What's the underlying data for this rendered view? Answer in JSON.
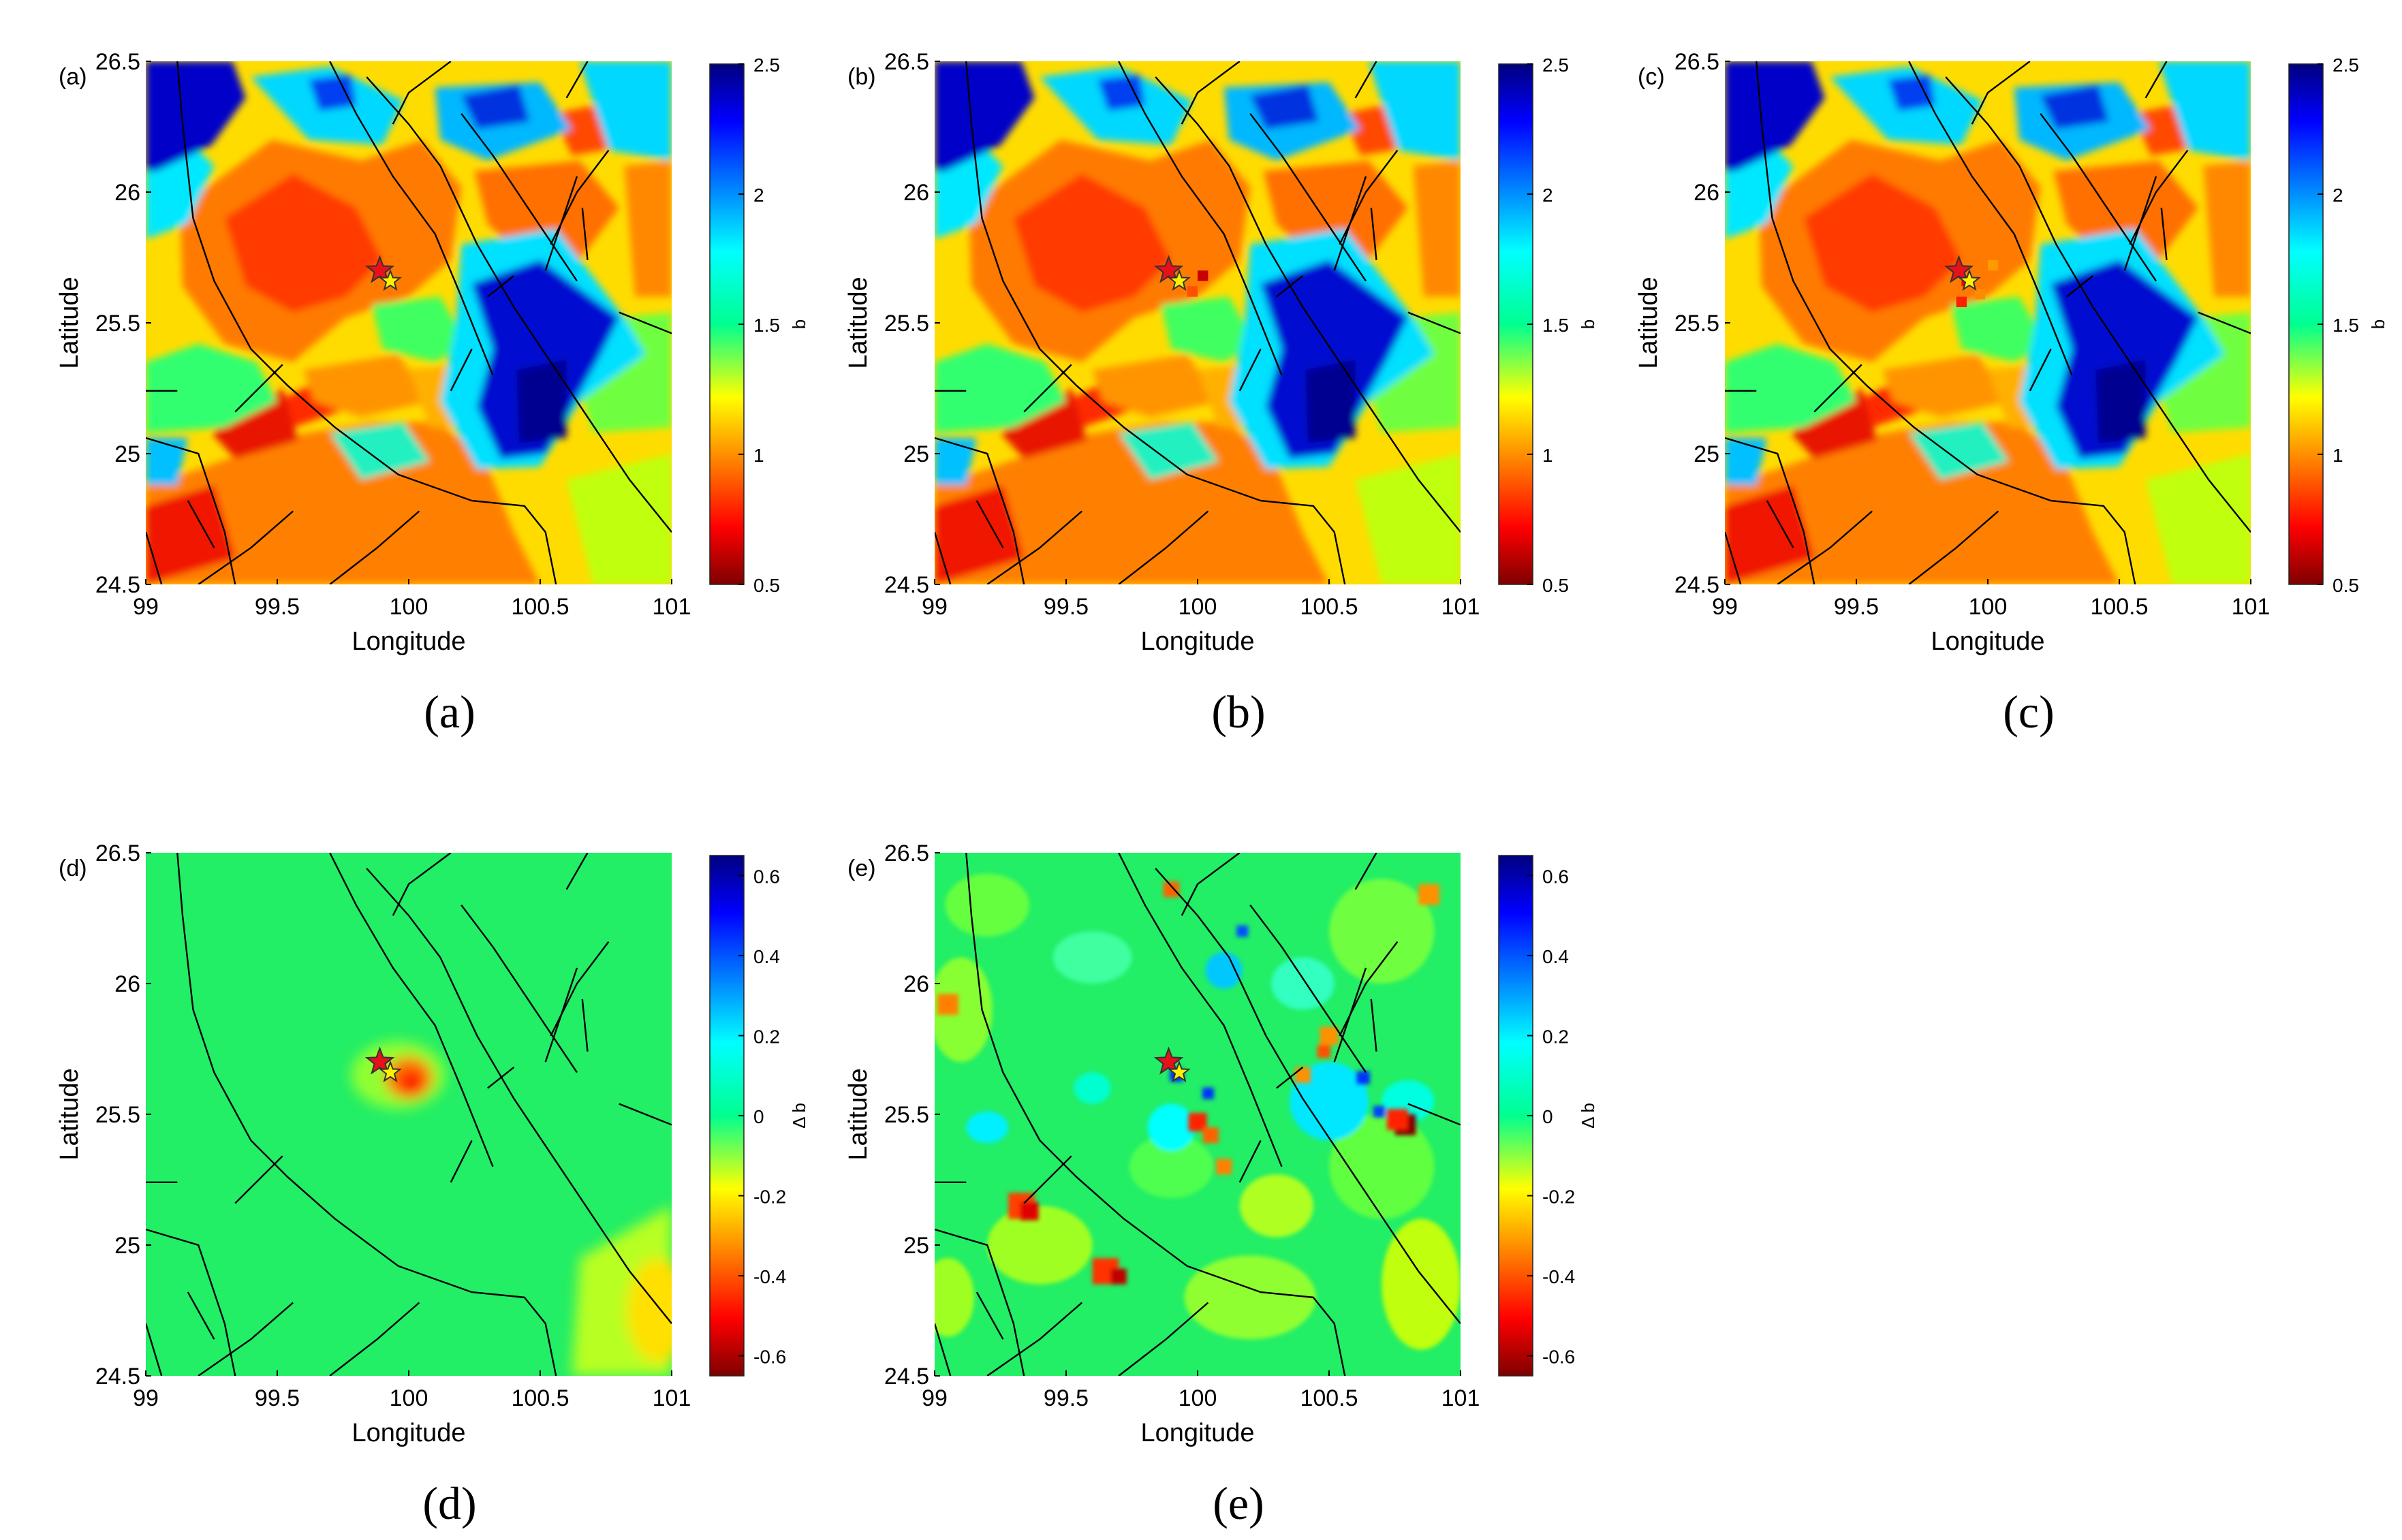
{
  "colorbar_b": {
    "label": "b",
    "min": 0.5,
    "max": 2.5,
    "ticks": [
      0.5,
      1,
      1.5,
      2,
      2.5
    ],
    "tick_labels": [
      "0.5",
      "1",
      "1.5",
      "2",
      "2.5"
    ]
  },
  "colorbar_db": {
    "label": "Δ b",
    "min": -0.65,
    "max": 0.65,
    "ticks": [
      -0.6,
      -0.4,
      -0.2,
      0,
      0.2,
      0.4,
      0.6
    ],
    "tick_labels": [
      "-0.6",
      "-0.4",
      "-0.2",
      "0",
      "0.2",
      "0.4",
      "0.6"
    ]
  },
  "axes": {
    "xlabel": "Longitude",
    "ylabel": "Latitude",
    "xlim": [
      99,
      101
    ],
    "ylim": [
      24.5,
      26.5
    ],
    "xticks": [
      99,
      99.5,
      100,
      100.5,
      101
    ],
    "xtick_labels": [
      "99",
      "99.5",
      "100",
      "100.5",
      "101"
    ],
    "yticks": [
      24.5,
      25,
      25.5,
      26,
      26.5
    ],
    "ytick_labels": [
      "24.5",
      "25",
      "25.5",
      "26",
      "26.5"
    ]
  },
  "panels": [
    {
      "id": "a",
      "corner_label": "(a)",
      "caption": "(a)",
      "colorbar": "b"
    },
    {
      "id": "b",
      "corner_label": "(b)",
      "caption": "(b)",
      "colorbar": "b"
    },
    {
      "id": "c",
      "corner_label": "(c)",
      "caption": "(c)",
      "colorbar": "b"
    },
    {
      "id": "d",
      "corner_label": "(d)",
      "caption": "(d)",
      "colorbar": "db"
    },
    {
      "id": "e",
      "corner_label": "(e)",
      "caption": "(e)",
      "colorbar": "db"
    }
  ],
  "chart_data": [
    {
      "type": "heatmap",
      "panel": "a",
      "x": "Longitude",
      "y": "Latitude",
      "xlim": [
        99,
        101
      ],
      "ylim": [
        24.5,
        26.5
      ],
      "value_label": "b",
      "value_range": [
        0.5,
        2.5
      ],
      "markers": [
        {
          "kind": "red-star",
          "lon": 99.89,
          "lat": 25.7
        },
        {
          "kind": "yellow-star",
          "lon": 99.93,
          "lat": 25.66
        }
      ],
      "high_b_zones": [
        {
          "lon": 100.45,
          "lat": 25.2,
          "b": 2.5
        },
        {
          "lon": 99.1,
          "lat": 26.4,
          "b": 2.5
        },
        {
          "lon": 100.2,
          "lat": 26.4,
          "b": 2.4
        }
      ],
      "low_b_zones": [
        {
          "lon": 99.75,
          "lat": 25.75,
          "b": 0.8
        },
        {
          "lon": 100.25,
          "lat": 24.75,
          "b": 0.9
        },
        {
          "lon": 99.2,
          "lat": 24.65,
          "b": 0.7
        }
      ]
    },
    {
      "type": "heatmap",
      "panel": "b",
      "x": "Longitude",
      "y": "Latitude",
      "xlim": [
        99,
        101
      ],
      "ylim": [
        24.5,
        26.5
      ],
      "value_label": "b",
      "value_range": [
        0.5,
        2.5
      ],
      "markers": [
        {
          "kind": "red-star",
          "lon": 99.89,
          "lat": 25.7
        },
        {
          "kind": "yellow-star",
          "lon": 99.93,
          "lat": 25.66
        }
      ]
    },
    {
      "type": "heatmap",
      "panel": "c",
      "x": "Longitude",
      "y": "Latitude",
      "xlim": [
        99,
        101
      ],
      "ylim": [
        24.5,
        26.5
      ],
      "value_label": "b",
      "value_range": [
        0.5,
        2.5
      ],
      "markers": [
        {
          "kind": "red-star",
          "lon": 99.89,
          "lat": 25.7
        },
        {
          "kind": "yellow-star",
          "lon": 99.93,
          "lat": 25.66
        }
      ]
    },
    {
      "type": "heatmap",
      "panel": "d",
      "x": "Longitude",
      "y": "Latitude",
      "xlim": [
        99,
        101
      ],
      "ylim": [
        24.5,
        26.5
      ],
      "value_label": "Δ b",
      "value_range": [
        -0.65,
        0.65
      ],
      "background_value": 0,
      "anomalies": [
        {
          "lon": 99.95,
          "lat": 25.65,
          "db": -0.5
        },
        {
          "lon": 100.95,
          "lat": 24.85,
          "db": -0.3
        }
      ],
      "markers": [
        {
          "kind": "red-star",
          "lon": 99.89,
          "lat": 25.7
        },
        {
          "kind": "yellow-star",
          "lon": 99.93,
          "lat": 25.66
        }
      ]
    },
    {
      "type": "heatmap",
      "panel": "e",
      "x": "Longitude",
      "y": "Latitude",
      "xlim": [
        99,
        101
      ],
      "ylim": [
        24.5,
        26.5
      ],
      "value_label": "Δ b",
      "value_range": [
        -0.65,
        0.65
      ],
      "background_value": 0,
      "anomalies": [
        {
          "lon": 100.78,
          "lat": 25.48,
          "db": -0.65
        },
        {
          "lon": 99.33,
          "lat": 25.12,
          "db": -0.5
        },
        {
          "lon": 99.65,
          "lat": 24.9,
          "db": -0.5
        },
        {
          "lon": 100.05,
          "lat": 25.45,
          "db": -0.4
        },
        {
          "lon": 99.95,
          "lat": 25.6,
          "db": 0.5
        },
        {
          "lon": 100.6,
          "lat": 25.65,
          "db": 0.4
        }
      ],
      "markers": [
        {
          "kind": "red-star",
          "lon": 99.89,
          "lat": 25.7
        },
        {
          "kind": "yellow-star",
          "lon": 99.93,
          "lat": 25.66
        }
      ]
    }
  ]
}
